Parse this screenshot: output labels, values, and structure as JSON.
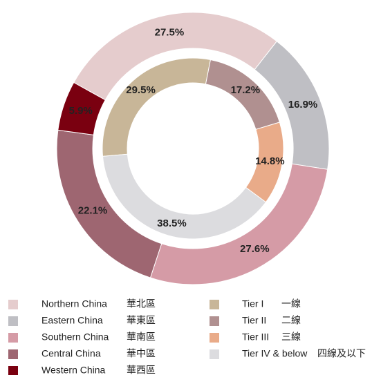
{
  "chart_data": [
    {
      "type": "donut",
      "categories": [
        "Northern China",
        "Eastern China",
        "Southern China",
        "Central China",
        "Western China"
      ],
      "categories_zh": [
        "華北區",
        "華東區",
        "華南區",
        "華中區",
        "華西區"
      ],
      "values": [
        27.5,
        16.9,
        27.6,
        22.1,
        5.9
      ],
      "value_labels": [
        "27.5%",
        "16.9%",
        "27.6%",
        "22.1%",
        "5.9%"
      ],
      "colors": [
        "#e5cccd",
        "#bfbfc4",
        "#d59ba6",
        "#9e6671",
        "#7a0010"
      ]
    },
    {
      "type": "donut",
      "categories": [
        "Tier I",
        "Tier II",
        "Tier III",
        "Tier IV & below"
      ],
      "categories_zh": [
        "一線",
        "二線",
        "三線",
        "四線及以下"
      ],
      "values": [
        29.5,
        17.2,
        14.8,
        38.5
      ],
      "value_labels": [
        "29.5%",
        "17.2%",
        "14.8%",
        "38.5%"
      ],
      "colors": [
        "#c8b698",
        "#b09090",
        "#e9ab89",
        "#dcdcdf"
      ]
    }
  ]
}
